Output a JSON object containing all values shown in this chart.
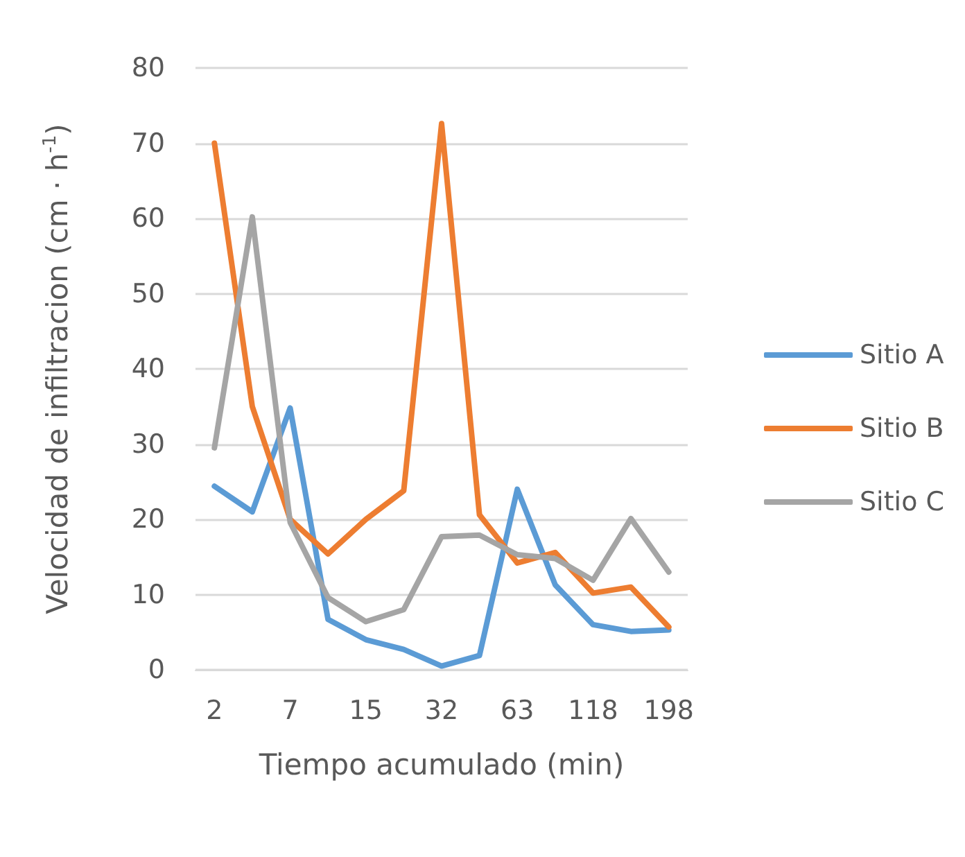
{
  "chart_data": {
    "type": "line",
    "xlabel": "Tiempo acumulado (min)",
    "ylabel": "Velocidad de infiltracion (cm · h$^{-1}$)",
    "categories": [
      "2",
      null,
      "7",
      null,
      "15",
      null,
      "32",
      null,
      "63",
      null,
      "118",
      null,
      "198"
    ],
    "series": [
      {
        "name": "Sitio A",
        "color": "#5b9bd5",
        "values": [
          24.4,
          21,
          34.8,
          6.7,
          4.0,
          2.7,
          0.5,
          1.9,
          24,
          11.3,
          6.0,
          5.1,
          5.3
        ]
      },
      {
        "name": "Sitio B",
        "color": "#ed7d31",
        "values": [
          70,
          35,
          20,
          15.4,
          20,
          23.8,
          72.6,
          20.6,
          14.2,
          15.6,
          10.2,
          11,
          5.7
        ]
      },
      {
        "name": "Sitio C",
        "color": "#a5a5a5",
        "values": [
          29.5,
          60.2,
          19.6,
          9.6,
          6.4,
          8.0,
          17.7,
          17.9,
          15.3,
          14.8,
          11.9,
          20.1,
          13
        ]
      }
    ],
    "ylim": [
      0,
      80
    ],
    "yticks": [
      0,
      10,
      20,
      30,
      40,
      50,
      60,
      70,
      80
    ],
    "grid": "y",
    "legend": "right",
    "marker": "none",
    "line_style": "solid"
  }
}
